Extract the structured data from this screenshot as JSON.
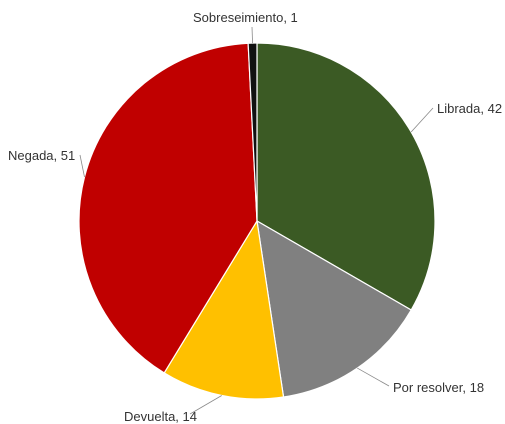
{
  "chart_data": {
    "type": "pie",
    "title": "",
    "start_angle_deg": 0,
    "direction": "clockwise",
    "slices": [
      {
        "label": "Librada",
        "value": 42,
        "color": "#3b5a24",
        "text": "Librada, 42"
      },
      {
        "label": "Por resolver",
        "value": 18,
        "color": "#808080",
        "text": "Por resolver, 18"
      },
      {
        "label": "Devuelta",
        "value": 14,
        "color": "#ffc000",
        "text": "Devuelta, 14"
      },
      {
        "label": "Negada",
        "value": 51,
        "color": "#c00000",
        "text": "Negada, 51"
      },
      {
        "label": "Sobreseimiento",
        "value": 1,
        "color": "#111111",
        "text": "Sobreseimiento, 1"
      }
    ]
  }
}
